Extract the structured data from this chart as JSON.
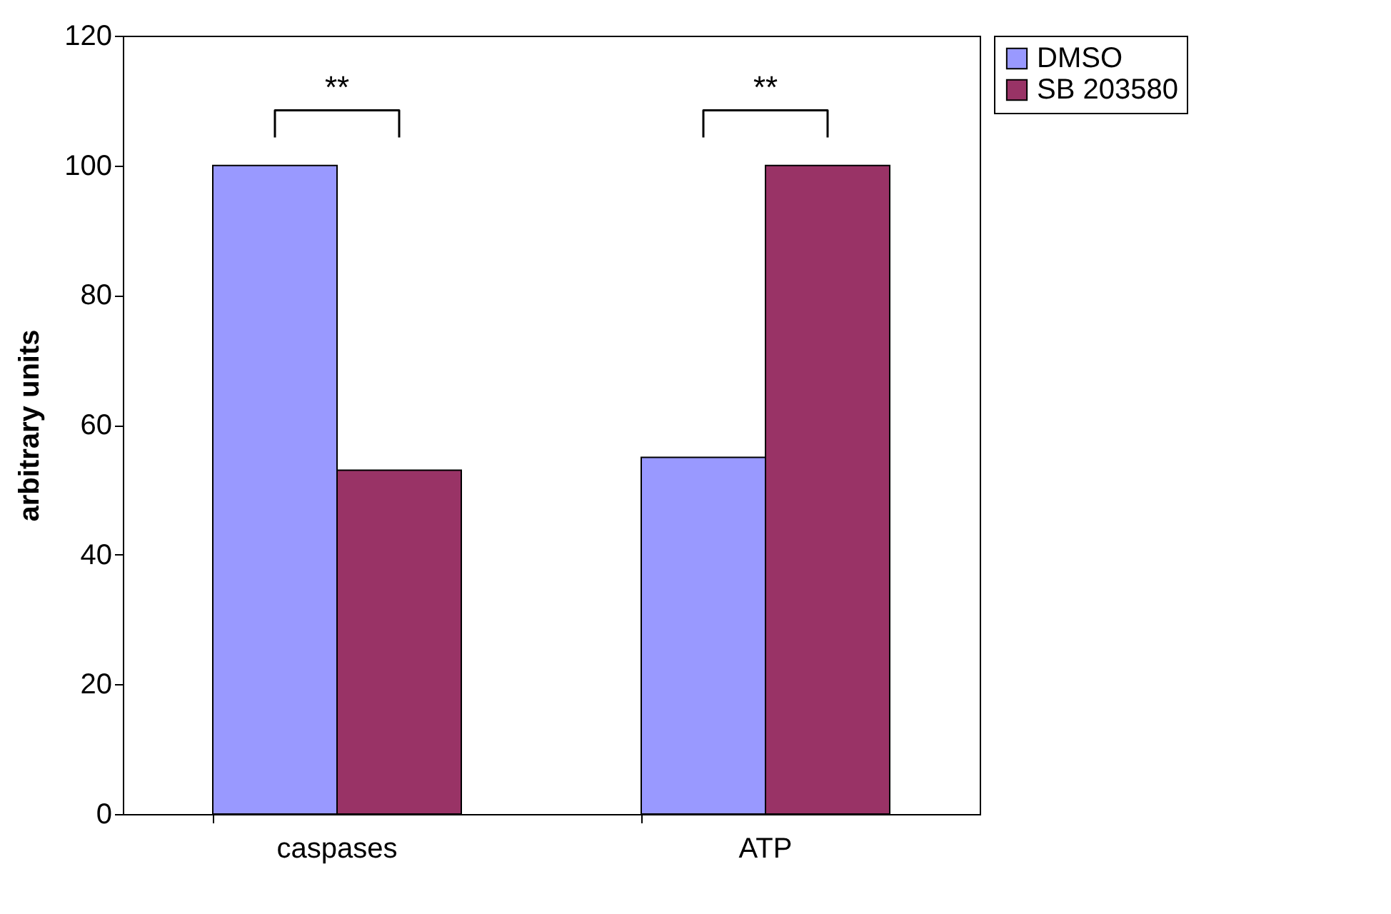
{
  "chart_data": {
    "type": "bar",
    "ylabel": "arbitrary units",
    "categories": [
      "caspases",
      "ATP"
    ],
    "series": [
      {
        "name": "DMSO",
        "color": "#9999ff",
        "values": [
          100,
          55
        ]
      },
      {
        "name": "SB 203580",
        "color": "#993366",
        "values": [
          53,
          100
        ]
      }
    ],
    "ylim": [
      0,
      120
    ],
    "yticks": [
      0,
      20,
      40,
      60,
      80,
      100,
      120
    ],
    "grid": false,
    "legend": "right",
    "annotations": [
      "**",
      "**"
    ]
  }
}
